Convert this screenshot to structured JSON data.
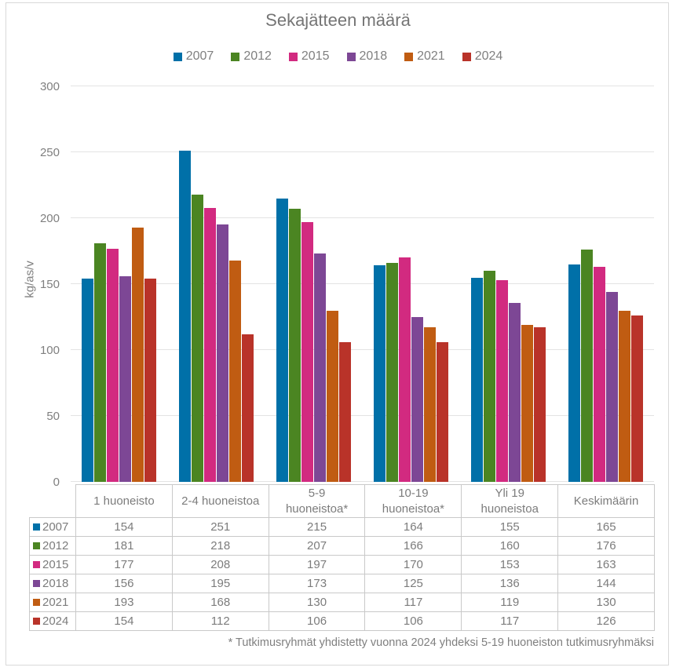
{
  "title": "Sekajätteen määrä",
  "footnote": "* Tutkimusryhmät yhdistetty vuonna 2024 yhdeksi 5-19 huoneiston tutkimusryhmäksi",
  "chart_data": {
    "type": "bar",
    "title": "Sekajätteen määrä",
    "ylabel": "kg/as/v",
    "ylim": [
      0,
      300
    ],
    "yticks": [
      0,
      50,
      100,
      150,
      200,
      250,
      300
    ],
    "grid": true,
    "legend_position": "top",
    "data_table": true,
    "categories": [
      "1 huoneisto",
      "2-4 huoneistoa",
      "5-9\nhuoneistoa*",
      "10-19\nhuoneistoa*",
      "Yli 19\nhuoneistoa",
      "Keskimäärin"
    ],
    "series": [
      {
        "name": "2007",
        "color": "#0070A8",
        "values": [
          154,
          251,
          215,
          164,
          155,
          165
        ]
      },
      {
        "name": "2012",
        "color": "#4B8522",
        "values": [
          181,
          218,
          207,
          166,
          160,
          176
        ]
      },
      {
        "name": "2015",
        "color": "#D22A80",
        "values": [
          177,
          208,
          197,
          170,
          153,
          163
        ]
      },
      {
        "name": "2018",
        "color": "#7D4795",
        "values": [
          156,
          195,
          173,
          125,
          136,
          144
        ]
      },
      {
        "name": "2021",
        "color": "#C05C12",
        "values": [
          193,
          168,
          130,
          117,
          119,
          130
        ]
      },
      {
        "name": "2024",
        "color": "#B93329",
        "values": [
          154,
          112,
          106,
          106,
          117,
          126
        ]
      }
    ],
    "colors": {
      "text_gray": "#7F7F7F",
      "gridline": "#E3E3E3",
      "table_border": "#C9C9C9",
      "frame_border": "#D9D9D9"
    }
  }
}
